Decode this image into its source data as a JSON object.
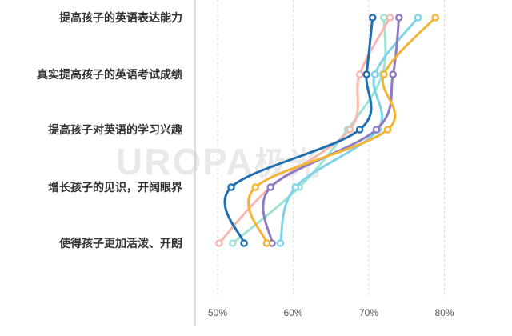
{
  "chart_data": {
    "type": "line",
    "orientation": "horizontal-value-axis",
    "categories": [
      "提高孩子的英语表达能力",
      "真实提高孩子的英语考试成绩",
      "提高孩子对英语的学习兴趣",
      "增长孩子的见识，开阔眼界",
      "使得孩子更加活泼、开朗"
    ],
    "x_ticks": [
      "50%",
      "60%",
      "70%",
      "80%"
    ],
    "xlim": [
      49,
      84
    ],
    "grid": true,
    "series": [
      {
        "color": "#1f6fb2",
        "values": [
          70.5,
          69.7,
          68.8,
          51.8,
          53.5
        ]
      },
      {
        "color": "#f5b335",
        "values": [
          78.8,
          72.0,
          72.5,
          55.0,
          56.5
        ]
      },
      {
        "color": "#8e7cc3",
        "values": [
          74.0,
          73.2,
          71.0,
          57.0,
          57.2
        ]
      },
      {
        "color": "#7fd3e8",
        "values": [
          76.5,
          70.8,
          71.2,
          60.3,
          58.3
        ]
      },
      {
        "color": "#f6b8b0",
        "values": [
          72.8,
          68.8,
          67.5,
          57.0,
          50.2
        ]
      },
      {
        "color": "#9fe3d2",
        "values": [
          72.0,
          71.8,
          67.2,
          60.8,
          52.0
        ]
      }
    ]
  },
  "watermark": {
    "latin": "UROPA",
    "cn": "极光"
  }
}
